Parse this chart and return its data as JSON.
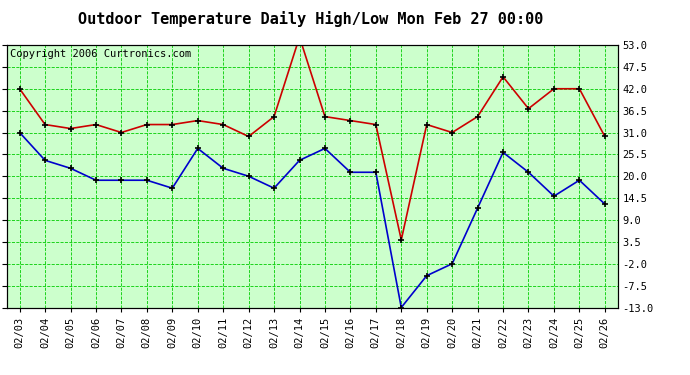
{
  "title": "Outdoor Temperature Daily High/Low Mon Feb 27 00:00",
  "copyright": "Copyright 2006 Curtronics.com",
  "dates": [
    "02/03",
    "02/04",
    "02/05",
    "02/06",
    "02/07",
    "02/08",
    "02/09",
    "02/10",
    "02/11",
    "02/12",
    "02/13",
    "02/14",
    "02/15",
    "02/16",
    "02/17",
    "02/18",
    "02/19",
    "02/20",
    "02/21",
    "02/22",
    "02/23",
    "02/24",
    "02/25",
    "02/26"
  ],
  "high_temps": [
    42,
    33,
    32,
    33,
    31,
    33,
    33,
    34,
    33,
    30,
    35,
    55,
    35,
    34,
    33,
    4,
    33,
    31,
    35,
    45,
    37,
    42,
    42,
    30
  ],
  "low_temps": [
    31,
    24,
    22,
    19,
    19,
    19,
    17,
    27,
    22,
    20,
    17,
    24,
    27,
    21,
    21,
    -13,
    -5,
    -2,
    12,
    26,
    21,
    15,
    19,
    13
  ],
  "high_color": "#cc0000",
  "low_color": "#0000cc",
  "marker_color": "#000000",
  "bg_color": "#ffffff",
  "plot_bg_color": "#ccffcc",
  "grid_color": "#00cc00",
  "title_color": "#000000",
  "copyright_color": "#000000",
  "ylim_min": -13.0,
  "ylim_max": 53.0,
  "yticks": [
    -13.0,
    -7.5,
    -2.0,
    3.5,
    9.0,
    14.5,
    20.0,
    25.5,
    31.0,
    36.5,
    42.0,
    47.5,
    53.0
  ],
  "title_fontsize": 11,
  "tick_fontsize": 7.5,
  "copyright_fontsize": 7.5
}
